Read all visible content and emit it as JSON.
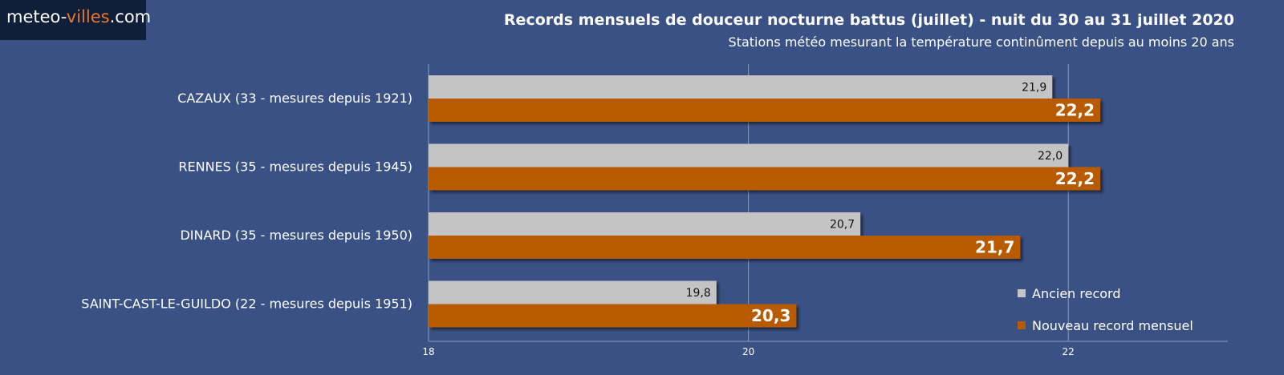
{
  "brand": {
    "name_left": "meteo-",
    "name_accent": "villes",
    "name_right": ".com",
    "accent_color": "#e8782a"
  },
  "chart_data": {
    "type": "bar",
    "orientation": "horizontal",
    "title": "Records mensuels de douceur nocturne battus (juillet) - nuit du 30 au 31 juillet  2020",
    "subtitle": "Stations météo mesurant la température continûment depuis au moins 20 ans",
    "categories": [
      "CAZAUX (33 - mesures depuis 1921)",
      "RENNES (35 - mesures depuis 1945)",
      "DINARD (35 - mesures depuis 1950)",
      "SAINT-CAST-LE-GUILDO (22 - mesures depuis 1951)"
    ],
    "series": [
      {
        "name": "Ancien record",
        "color": "#c4c4c4",
        "values": [
          21.9,
          22.0,
          20.7,
          19.8
        ],
        "labels": [
          "21,9",
          "22,0",
          "20,7",
          "19,8"
        ]
      },
      {
        "name": "Nouveau record mensuel",
        "color": "#b85a00",
        "values": [
          22.2,
          22.2,
          21.7,
          20.3
        ],
        "labels": [
          "22,2",
          "22,2",
          "21,7",
          "20,3"
        ]
      }
    ],
    "xlim": [
      18,
      23
    ],
    "xticks": [
      18,
      20,
      22
    ],
    "xtick_labels": [
      "18",
      "20",
      "22"
    ],
    "grid": true,
    "legend_position": "bottom-right"
  }
}
